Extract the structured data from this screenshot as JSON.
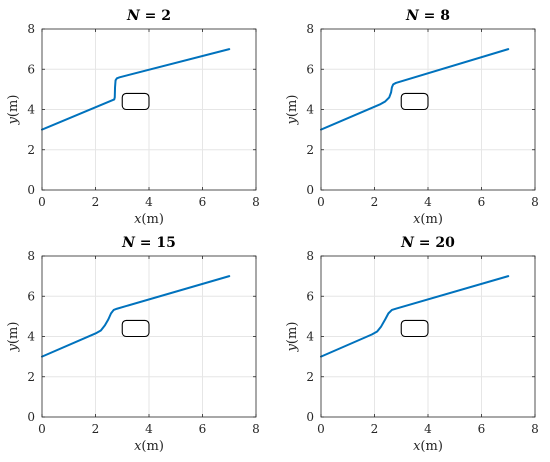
{
  "chart_data": [
    {
      "type": "line",
      "title": {
        "var": "N",
        "op": " = ",
        "value": "2"
      },
      "xlabel": {
        "var": "x",
        "unit": "(m)"
      },
      "ylabel": {
        "var": "y",
        "unit": "(m)"
      },
      "xlim": [
        0,
        8
      ],
      "ylim": [
        0,
        8
      ],
      "xticks": [
        "0",
        "2",
        "4",
        "6",
        "8"
      ],
      "yticks": [
        "0",
        "2",
        "4",
        "6",
        "8"
      ],
      "grid": true,
      "series": [
        {
          "color": "#0072BD",
          "x": [
            0,
            2.7,
            2.72,
            2.73,
            2.75,
            2.8,
            2.9,
            7.0
          ],
          "y": [
            3.0,
            4.5,
            4.6,
            5.1,
            5.45,
            5.55,
            5.6,
            7.0
          ]
        }
      ],
      "obstacle": {
        "x": [
          3.0,
          4.0
        ],
        "y": [
          4.0,
          4.8
        ]
      }
    },
    {
      "type": "line",
      "title": {
        "var": "N",
        "op": " = ",
        "value": "8"
      },
      "xlabel": {
        "var": "x",
        "unit": "(m)"
      },
      "ylabel": {
        "var": "y",
        "unit": "(m)"
      },
      "xlim": [
        0,
        8
      ],
      "ylim": [
        0,
        8
      ],
      "xticks": [
        "0",
        "2",
        "4",
        "6",
        "8"
      ],
      "yticks": [
        "0",
        "2",
        "4",
        "6",
        "8"
      ],
      "grid": true,
      "series": [
        {
          "color": "#0072BD",
          "x": [
            0,
            2.2,
            2.4,
            2.55,
            2.62,
            2.65,
            2.7,
            2.8,
            7.0
          ],
          "y": [
            3.0,
            4.25,
            4.4,
            4.6,
            4.85,
            5.1,
            5.25,
            5.32,
            7.0
          ]
        }
      ],
      "obstacle": {
        "x": [
          3.0,
          4.0
        ],
        "y": [
          4.0,
          4.8
        ]
      }
    },
    {
      "type": "line",
      "title": {
        "var": "N",
        "op": " = ",
        "value": "15"
      },
      "xlabel": {
        "var": "x",
        "unit": "(m)"
      },
      "ylabel": {
        "var": "y",
        "unit": "(m)"
      },
      "xlim": [
        0,
        8
      ],
      "ylim": [
        0,
        8
      ],
      "xticks": [
        "0",
        "2",
        "4",
        "6",
        "8"
      ],
      "yticks": [
        "0",
        "2",
        "4",
        "6",
        "8"
      ],
      "grid": true,
      "series": [
        {
          "color": "#0072BD",
          "x": [
            0,
            2.0,
            2.2,
            2.35,
            2.48,
            2.58,
            2.68,
            2.8,
            7.0
          ],
          "y": [
            3.0,
            4.15,
            4.3,
            4.55,
            4.85,
            5.15,
            5.32,
            5.38,
            7.0
          ]
        }
      ],
      "obstacle": {
        "x": [
          3.0,
          4.0
        ],
        "y": [
          4.0,
          4.8
        ]
      }
    },
    {
      "type": "line",
      "title": {
        "var": "N",
        "op": " = ",
        "value": "20"
      },
      "xlabel": {
        "var": "x",
        "unit": "(m)"
      },
      "ylabel": {
        "var": "y",
        "unit": "(m)"
      },
      "xlim": [
        0,
        8
      ],
      "ylim": [
        0,
        8
      ],
      "xticks": [
        "0",
        "2",
        "4",
        "6",
        "8"
      ],
      "yticks": [
        "0",
        "2",
        "4",
        "6",
        "8"
      ],
      "grid": true,
      "series": [
        {
          "color": "#0072BD",
          "x": [
            0,
            1.9,
            2.1,
            2.25,
            2.4,
            2.52,
            2.65,
            2.8,
            7.0
          ],
          "y": [
            3.0,
            4.1,
            4.25,
            4.5,
            4.85,
            5.15,
            5.32,
            5.38,
            7.0
          ]
        }
      ],
      "obstacle": {
        "x": [
          3.0,
          4.0
        ],
        "y": [
          4.0,
          4.8
        ]
      }
    }
  ]
}
